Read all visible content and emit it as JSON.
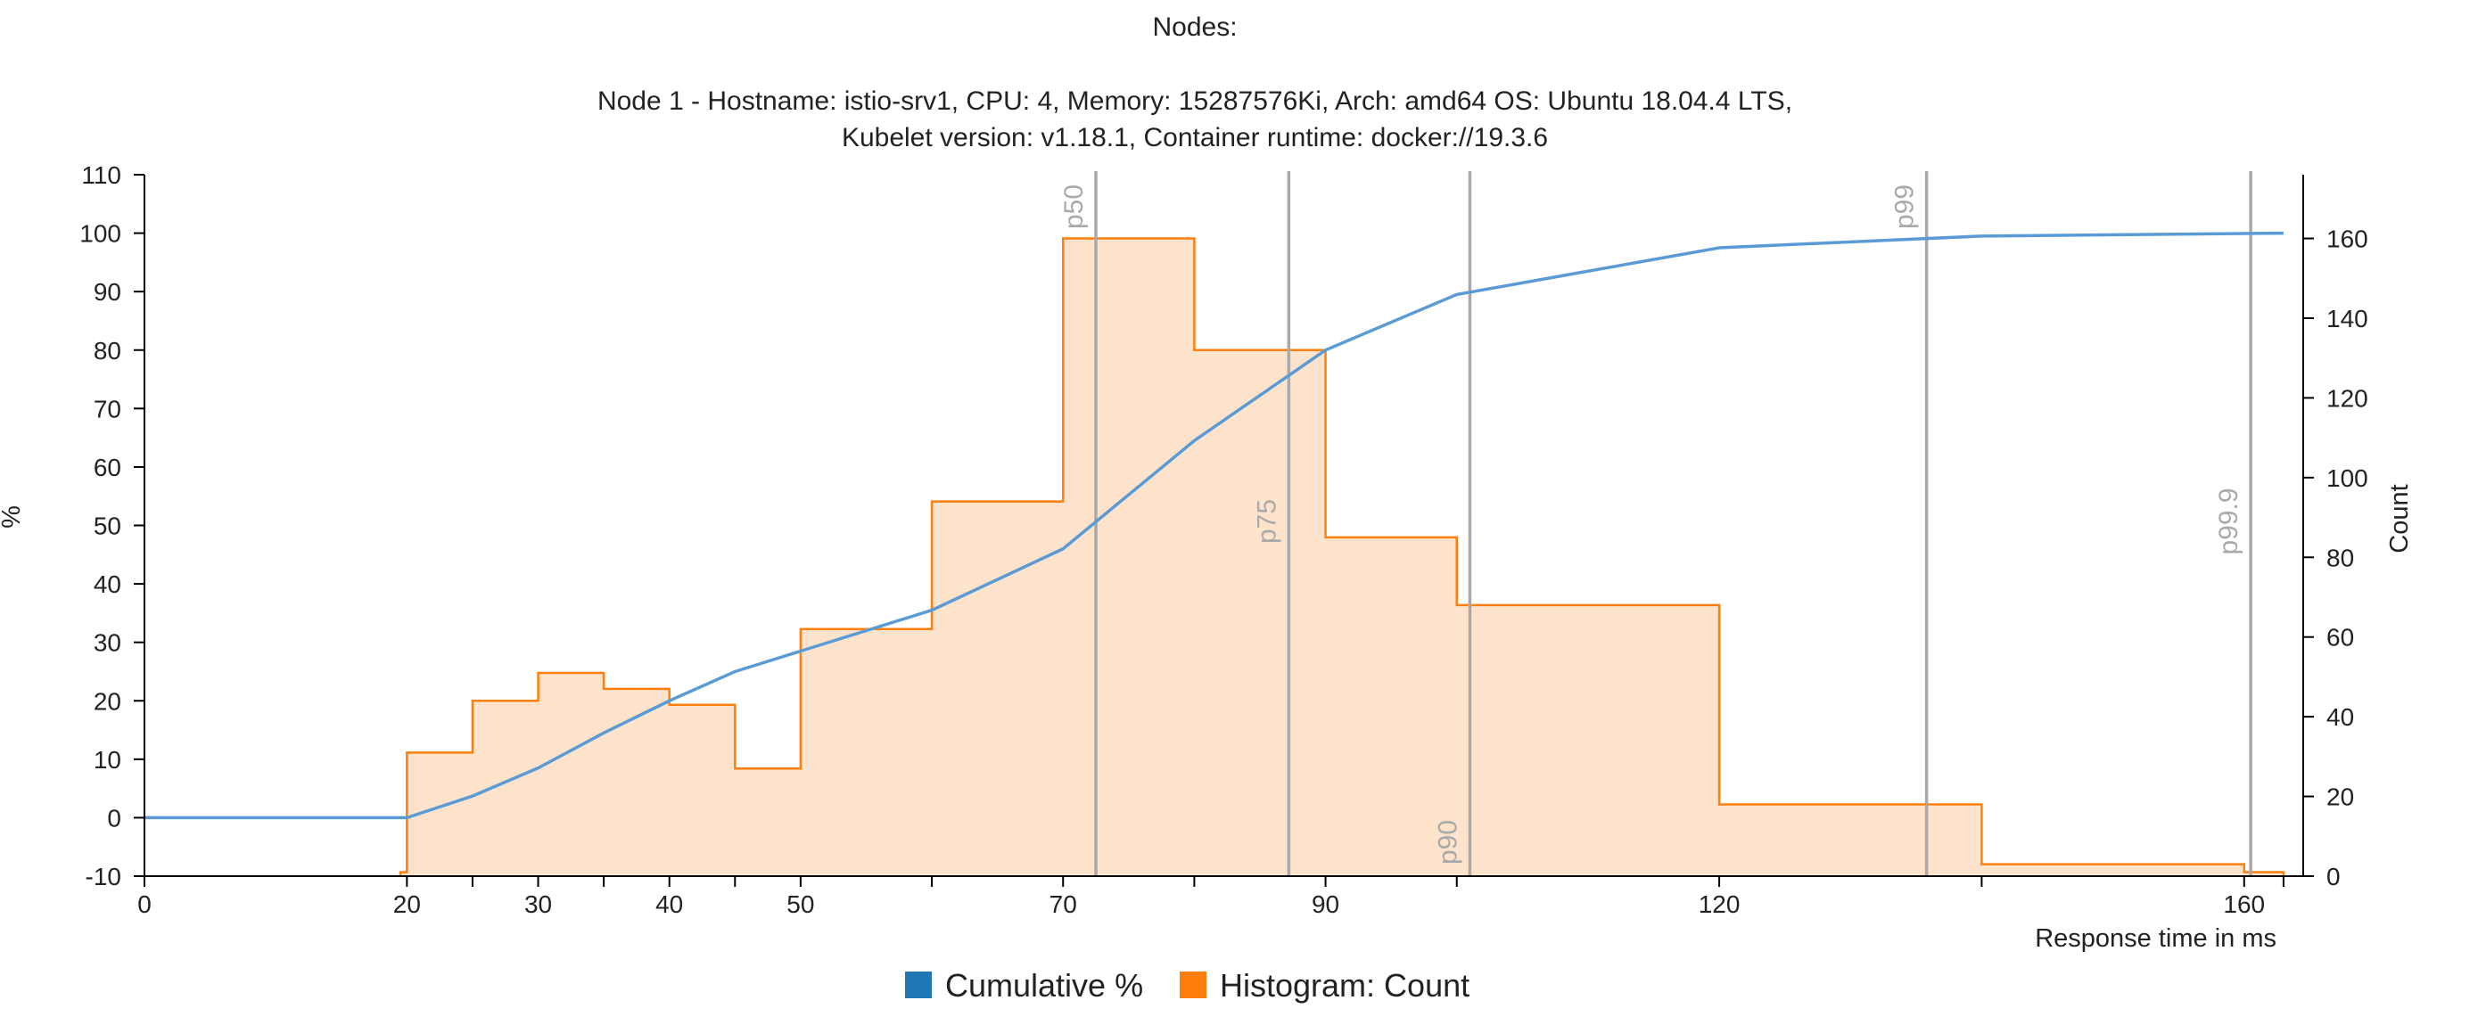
{
  "chart_data": {
    "type": "histogram+line",
    "title": "Nodes:",
    "subtitle_lines": [
      "Node 1 - Hostname: istio-srv1, CPU: 4, Memory: 15287576Ki, Arch: amd64 OS: Ubuntu 18.04.4 LTS,",
      "Kubelet version: v1.18.1, Container runtime: docker://19.3.6"
    ],
    "xlabel": "Response time in ms",
    "ylabel_left": "%",
    "ylabel_right": "Count",
    "xlim": [
      0,
      164.5
    ],
    "ylim_left": [
      -10,
      110
    ],
    "ylim_right": [
      0,
      176
    ],
    "x_ticks": [
      0,
      20,
      30,
      40,
      50,
      70,
      90,
      120,
      160
    ],
    "x_minor_ticks": [
      25,
      35,
      45,
      60,
      80,
      100,
      140,
      163
    ],
    "y_left_ticks": [
      -10,
      0,
      10,
      20,
      30,
      40,
      50,
      60,
      70,
      80,
      90,
      100,
      110
    ],
    "y_right_ticks": [
      0,
      20,
      40,
      60,
      80,
      100,
      120,
      140,
      160
    ],
    "legend": [
      {
        "name": "Cumulative %",
        "color": "#1f77b4"
      },
      {
        "name": "Histogram: Count",
        "color": "#ff7f0e"
      }
    ],
    "histogram": {
      "name": "Histogram: Count",
      "color": "#ff7f0e",
      "fill": "#fde3cc",
      "bins": [
        {
          "start": 19.5,
          "end": 20,
          "count": 1
        },
        {
          "start": 20,
          "end": 25,
          "count": 31
        },
        {
          "start": 25,
          "end": 30,
          "count": 44
        },
        {
          "start": 30,
          "end": 35,
          "count": 51
        },
        {
          "start": 35,
          "end": 40,
          "count": 47
        },
        {
          "start": 40,
          "end": 45,
          "count": 43
        },
        {
          "start": 45,
          "end": 50,
          "count": 27
        },
        {
          "start": 50,
          "end": 60,
          "count": 62
        },
        {
          "start": 60,
          "end": 70,
          "count": 94
        },
        {
          "start": 70,
          "end": 80,
          "count": 160
        },
        {
          "start": 80,
          "end": 90,
          "count": 132
        },
        {
          "start": 90,
          "end": 100,
          "count": 85
        },
        {
          "start": 100,
          "end": 120,
          "count": 68
        },
        {
          "start": 120,
          "end": 140,
          "count": 18
        },
        {
          "start": 140,
          "end": 160,
          "count": 3
        },
        {
          "start": 160,
          "end": 163,
          "count": 1
        }
      ]
    },
    "cumulative": {
      "name": "Cumulative %",
      "color": "#5b9bd5",
      "points": [
        [
          0,
          0
        ],
        [
          20,
          0
        ],
        [
          25,
          3.7
        ],
        [
          30,
          8.5
        ],
        [
          35,
          14.5
        ],
        [
          40,
          20
        ],
        [
          45,
          25
        ],
        [
          50,
          28.5
        ],
        [
          60,
          35.5
        ],
        [
          70,
          46
        ],
        [
          80,
          64.5
        ],
        [
          90,
          80
        ],
        [
          100,
          89.5
        ],
        [
          120,
          97.5
        ],
        [
          140,
          99.5
        ],
        [
          163,
          100
        ]
      ]
    },
    "percentiles": [
      {
        "label": "p50",
        "x": 72.5
      },
      {
        "label": "p75",
        "x": 87.2
      },
      {
        "label": "p90",
        "x": 101
      },
      {
        "label": "p99",
        "x": 135.8
      },
      {
        "label": "p99.9",
        "x": 160.5
      }
    ]
  }
}
